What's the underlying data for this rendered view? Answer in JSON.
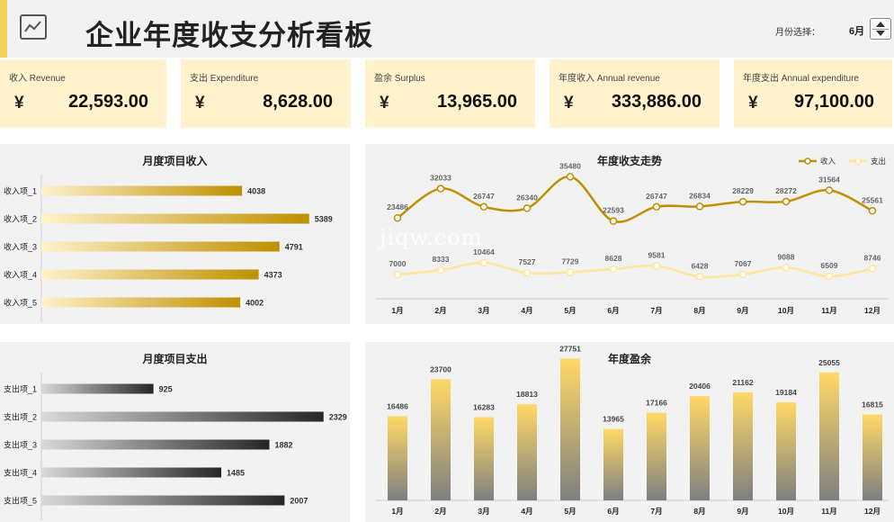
{
  "header": {
    "title": "企业年度收支分析看板",
    "month_label": "月份选择：",
    "month_value": "6月"
  },
  "kpis": [
    {
      "label": "收入 Revenue",
      "currency": "¥",
      "value": "22,593.00"
    },
    {
      "label": "支出 Expenditure",
      "currency": "¥",
      "value": "8,628.00"
    },
    {
      "label": "盈余 Surplus",
      "currency": "¥",
      "value": "13,965.00"
    },
    {
      "label": "年度收入 Annual revenue",
      "currency": "¥",
      "value": "333,886.00"
    },
    {
      "label": "年度支出 Annual expenditure",
      "currency": "¥",
      "value": "97,100.00"
    }
  ],
  "watermark": "jiqw.com",
  "colors": {
    "accent": "#f6cf5a",
    "kpi_bg": "#fff2cc",
    "revenue_line": "#bf9000",
    "expense_line": "#ffe699",
    "panel_bg": "#f2f2f2"
  },
  "chart_data": [
    {
      "id": "monthly-income",
      "type": "bar",
      "orientation": "horizontal",
      "title": "月度项目收入",
      "categories": [
        "收入项_1",
        "收入项_2",
        "收入项_3",
        "收入项_4",
        "收入项_5"
      ],
      "values": [
        4038,
        5389,
        4791,
        4373,
        4002
      ],
      "xlim": [
        0,
        5900
      ],
      "gradient": [
        "#fff2cc",
        "#bf9000"
      ]
    },
    {
      "id": "annual-trend",
      "type": "line",
      "title": "年度收支走势",
      "categories": [
        "1月",
        "2月",
        "3月",
        "4月",
        "5月",
        "6月",
        "7月",
        "8月",
        "9月",
        "10月",
        "11月",
        "12月"
      ],
      "series": [
        {
          "name": "收入",
          "values": [
            23486,
            32033,
            26747,
            26340,
            35480,
            22593,
            26747,
            26834,
            28229,
            28272,
            31564,
            25561
          ]
        },
        {
          "name": "支出",
          "values": [
            7000,
            8333,
            10464,
            7527,
            7729,
            8628,
            9581,
            6428,
            7067,
            9088,
            6509,
            8746
          ]
        }
      ],
      "legend": "top-right",
      "ylim": [
        0,
        45000
      ]
    },
    {
      "id": "monthly-expense",
      "type": "bar",
      "orientation": "horizontal",
      "title": "月度项目支出",
      "categories": [
        "支出项_1",
        "支出项_2",
        "支出项_3",
        "支出项_4",
        "支出项_5"
      ],
      "values": [
        925,
        2329,
        1882,
        1485,
        2007
      ],
      "xlim": [
        0,
        2420
      ],
      "gradient": [
        "#d9d9d9",
        "#262626"
      ]
    },
    {
      "id": "annual-surplus",
      "type": "bar",
      "title": "年度盈余",
      "categories": [
        "1月",
        "2月",
        "3月",
        "4月",
        "5月",
        "6月",
        "7月",
        "8月",
        "9月",
        "10月",
        "11月",
        "12月"
      ],
      "values": [
        16486,
        23700,
        16283,
        18813,
        27751,
        13965,
        17166,
        20406,
        21162,
        19184,
        25055,
        16815
      ],
      "ylim": [
        0,
        31000
      ],
      "gradient": [
        "#ffd966",
        "#7f7f7f"
      ]
    }
  ]
}
